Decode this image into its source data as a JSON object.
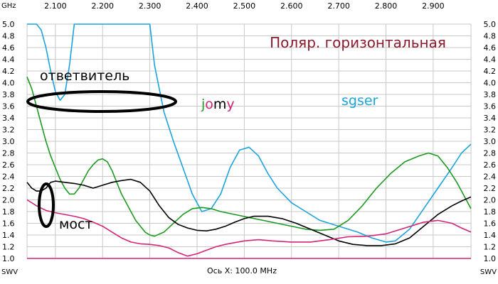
{
  "chart_data": {
    "type": "line",
    "title": "Поляр. горизонтальная",
    "x_unit": "GHz",
    "y_unit_left": "SWV",
    "y_unit_right": "SWV",
    "xlabel": "Ось X: 100.0 MHz",
    "xlim": [
      2.04,
      2.98
    ],
    "ylim": [
      1.0,
      5.0
    ],
    "x_ticks": [
      "2.100",
      "2.200",
      "2.300",
      "2.400",
      "2.500",
      "2.600",
      "2.700",
      "2.800",
      "2.900"
    ],
    "x_tick_values": [
      2.1,
      2.2,
      2.3,
      2.4,
      2.5,
      2.6,
      2.7,
      2.8,
      2.9
    ],
    "y_ticks": [
      "5.0",
      "4.8",
      "4.6",
      "4.4",
      "4.2",
      "4.0",
      "3.8",
      "3.6",
      "3.4",
      "3.2",
      "3.0",
      "2.8",
      "2.6",
      "2.4",
      "2.2",
      "2.0",
      "1.8",
      "1.6",
      "1.4",
      "1.2",
      "1.0"
    ],
    "y_tick_values": [
      5.0,
      4.8,
      4.6,
      4.4,
      4.2,
      4.0,
      3.8,
      3.6,
      3.4,
      3.2,
      3.0,
      2.8,
      2.6,
      2.4,
      2.2,
      2.0,
      1.8,
      1.6,
      1.4,
      1.2,
      1.0
    ],
    "grid": true,
    "baseline": 1.0,
    "series": [
      {
        "color": "#1aa3dd",
        "x": [
          2.04,
          2.06,
          2.07,
          2.08,
          2.09,
          2.1,
          2.11,
          2.12,
          2.13,
          2.14,
          2.15,
          2.16,
          2.17,
          2.18,
          2.19,
          2.2,
          2.21,
          2.22,
          2.23,
          2.24,
          2.25,
          2.26,
          2.27,
          2.28,
          2.29,
          2.3,
          2.31,
          2.33,
          2.35,
          2.37,
          2.39,
          2.41,
          2.43,
          2.45,
          2.47,
          2.49,
          2.51,
          2.53,
          2.55,
          2.57,
          2.6,
          2.63,
          2.66,
          2.7,
          2.74,
          2.77,
          2.8,
          2.82,
          2.85,
          2.88,
          2.91,
          2.94,
          2.96,
          2.98
        ],
        "y": [
          5.0,
          5.0,
          4.9,
          4.6,
          4.2,
          3.85,
          3.7,
          3.8,
          4.3,
          5.0,
          5.0,
          5.0,
          5.0,
          5.0,
          5.0,
          5.0,
          5.0,
          5.0,
          5.0,
          5.0,
          5.0,
          5.0,
          5.0,
          5.0,
          5.0,
          5.0,
          4.3,
          3.5,
          3.0,
          2.55,
          2.1,
          1.8,
          1.85,
          2.1,
          2.55,
          2.85,
          2.9,
          2.75,
          2.45,
          2.2,
          1.95,
          1.8,
          1.65,
          1.55,
          1.45,
          1.35,
          1.28,
          1.3,
          1.5,
          1.85,
          2.2,
          2.55,
          2.8,
          2.95
        ]
      },
      {
        "color": "#1c9a20",
        "x": [
          2.04,
          2.05,
          2.06,
          2.07,
          2.08,
          2.09,
          2.1,
          2.11,
          2.12,
          2.13,
          2.14,
          2.15,
          2.16,
          2.17,
          2.18,
          2.19,
          2.2,
          2.21,
          2.22,
          2.23,
          2.24,
          2.25,
          2.26,
          2.27,
          2.28,
          2.29,
          2.3,
          2.31,
          2.33,
          2.35,
          2.37,
          2.39,
          2.41,
          2.43,
          2.45,
          2.48,
          2.51,
          2.54,
          2.57,
          2.6,
          2.63,
          2.66,
          2.69,
          2.72,
          2.75,
          2.78,
          2.81,
          2.84,
          2.87,
          2.89,
          2.91,
          2.93,
          2.95,
          2.97,
          2.98
        ],
        "y": [
          4.1,
          3.9,
          3.6,
          3.3,
          3.0,
          2.75,
          2.55,
          2.35,
          2.2,
          2.1,
          2.1,
          2.2,
          2.35,
          2.5,
          2.6,
          2.68,
          2.7,
          2.65,
          2.5,
          2.3,
          2.1,
          1.95,
          1.8,
          1.65,
          1.55,
          1.45,
          1.4,
          1.38,
          1.45,
          1.6,
          1.75,
          1.85,
          1.87,
          1.85,
          1.8,
          1.75,
          1.7,
          1.65,
          1.6,
          1.55,
          1.5,
          1.48,
          1.5,
          1.65,
          1.9,
          2.2,
          2.45,
          2.65,
          2.75,
          2.8,
          2.75,
          2.55,
          2.3,
          2.0,
          1.85
        ]
      },
      {
        "color": "#000000",
        "x": [
          2.04,
          2.05,
          2.06,
          2.07,
          2.08,
          2.09,
          2.1,
          2.12,
          2.14,
          2.16,
          2.18,
          2.2,
          2.22,
          2.24,
          2.26,
          2.28,
          2.3,
          2.32,
          2.34,
          2.36,
          2.38,
          2.4,
          2.42,
          2.44,
          2.46,
          2.48,
          2.5,
          2.52,
          2.55,
          2.58,
          2.61,
          2.64,
          2.67,
          2.7,
          2.73,
          2.76,
          2.79,
          2.82,
          2.85,
          2.88,
          2.91,
          2.94,
          2.96,
          2.98
        ],
        "y": [
          2.3,
          2.2,
          2.15,
          2.15,
          2.2,
          2.3,
          2.32,
          2.3,
          2.28,
          2.25,
          2.2,
          2.25,
          2.3,
          2.33,
          2.35,
          2.3,
          2.15,
          1.9,
          1.7,
          1.58,
          1.52,
          1.48,
          1.47,
          1.5,
          1.55,
          1.62,
          1.68,
          1.72,
          1.72,
          1.68,
          1.6,
          1.5,
          1.4,
          1.3,
          1.24,
          1.22,
          1.22,
          1.25,
          1.35,
          1.55,
          1.75,
          1.9,
          1.98,
          2.05
        ]
      },
      {
        "color": "#d6237a",
        "x": [
          2.04,
          2.06,
          2.08,
          2.1,
          2.12,
          2.14,
          2.16,
          2.18,
          2.2,
          2.22,
          2.24,
          2.26,
          2.28,
          2.3,
          2.32,
          2.34,
          2.36,
          2.38,
          2.4,
          2.42,
          2.44,
          2.46,
          2.48,
          2.5,
          2.53,
          2.56,
          2.6,
          2.64,
          2.68,
          2.72,
          2.76,
          2.8,
          2.84,
          2.88,
          2.91,
          2.94,
          2.96,
          2.98
        ],
        "y": [
          2.0,
          1.9,
          1.82,
          1.78,
          1.75,
          1.72,
          1.68,
          1.62,
          1.55,
          1.45,
          1.35,
          1.28,
          1.25,
          1.24,
          1.22,
          1.18,
          1.1,
          1.04,
          1.08,
          1.14,
          1.2,
          1.24,
          1.27,
          1.3,
          1.32,
          1.3,
          1.28,
          1.28,
          1.32,
          1.37,
          1.38,
          1.42,
          1.52,
          1.62,
          1.65,
          1.6,
          1.52,
          1.45
        ]
      }
    ],
    "annotations": [
      {
        "text": "ответвитель",
        "color": "#000000"
      },
      {
        "text": "мост",
        "color": "#000000"
      },
      {
        "text": "sgser",
        "color": "#1aa3dd"
      }
    ],
    "series_labels": [
      {
        "parts": [
          "j",
          "o",
          "m",
          "y"
        ],
        "colors": [
          "#1c9a20",
          "#d6237a",
          "#000000",
          "#d6237a"
        ]
      }
    ],
    "colors": {
      "title": "#8b1a2c",
      "grid": "#c8c8c8",
      "baseline": "#d6237a",
      "ellipse": "#000000"
    }
  }
}
